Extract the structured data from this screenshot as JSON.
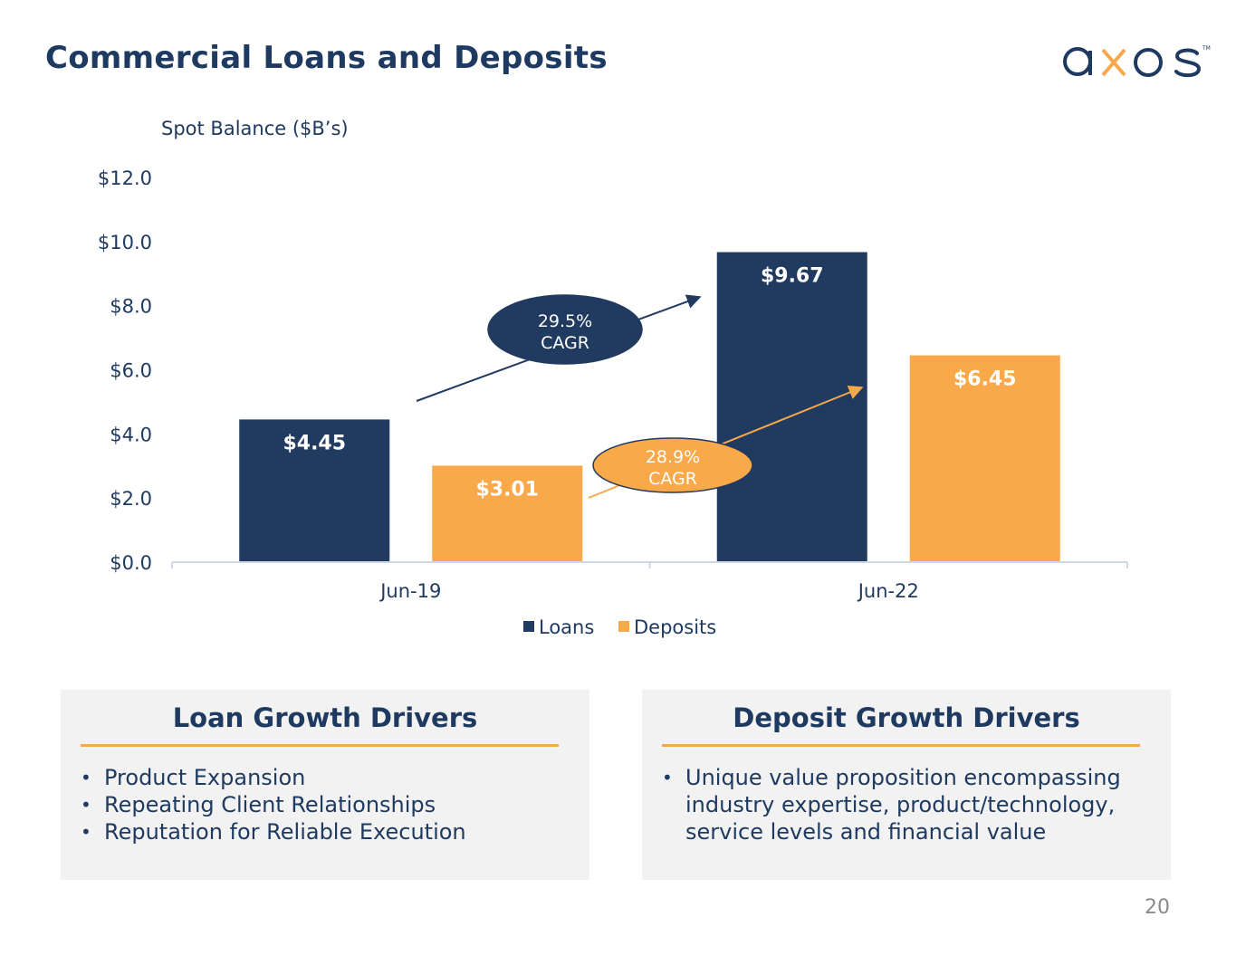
{
  "slide": {
    "title": "Commercial Loans and Deposits",
    "page_number": "20"
  },
  "logo": {
    "text": "axos",
    "colors": {
      "primary": "#1f3a60",
      "accent": "#f8a84a"
    }
  },
  "chart_data": {
    "type": "bar",
    "subtitle": "Spot Balance ($B’s)",
    "categories": [
      "Jun-19",
      "Jun-22"
    ],
    "series": [
      {
        "name": "Loans",
        "values": [
          4.45,
          9.67
        ],
        "labels": [
          "$4.45",
          "$9.67"
        ],
        "color": "#213a5f"
      },
      {
        "name": "Deposits",
        "values": [
          3.01,
          6.45
        ],
        "labels": [
          "$3.01",
          "$6.45"
        ],
        "color": "#f9a84a"
      }
    ],
    "ylim": [
      0,
      12
    ],
    "yticks": [
      {
        "value": 0,
        "label": "$0.0"
      },
      {
        "value": 2,
        "label": "$2.0"
      },
      {
        "value": 4,
        "label": "$4.0"
      },
      {
        "value": 6,
        "label": "$6.0"
      },
      {
        "value": 8,
        "label": "$8.0"
      },
      {
        "value": 10,
        "label": "$10.0"
      },
      {
        "value": 12,
        "label": "$12.0"
      }
    ],
    "grid": false,
    "legend": "bottom-center",
    "annotations": [
      {
        "series": "Loans",
        "line1": "29.5%",
        "line2": "CAGR"
      },
      {
        "series": "Deposits",
        "line1": "28.9%",
        "line2": "CAGR"
      }
    ]
  },
  "panels": [
    {
      "title": "Loan Growth Drivers",
      "items": [
        "Product Expansion",
        "Repeating Client Relationships",
        "Reputation for Reliable Execution"
      ]
    },
    {
      "title": "Deposit Growth Drivers",
      "items": [
        "Unique value proposition encompassing industry expertise, product/technology, service levels and financial value"
      ]
    }
  ]
}
